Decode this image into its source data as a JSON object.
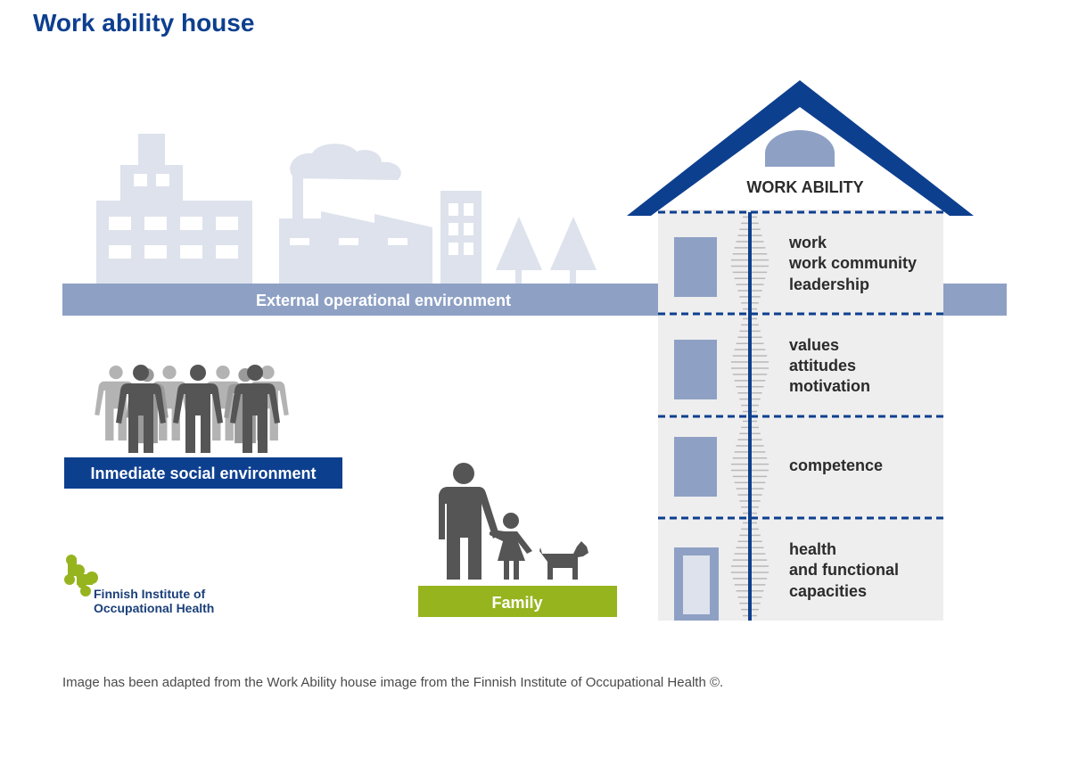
{
  "title": "Work ability house",
  "house": {
    "roof_label": "WORK ABILITY",
    "floors": [
      {
        "lines": [
          "work",
          "work community",
          "leadership"
        ]
      },
      {
        "lines": [
          "values",
          "attitudes",
          "motivation"
        ]
      },
      {
        "lines": [
          "competence"
        ]
      },
      {
        "lines": [
          "health",
          "and functional",
          "capacities"
        ]
      }
    ]
  },
  "environments": {
    "external": "External operational environment",
    "social": "Inmediate social environment",
    "family": "Family"
  },
  "logo": {
    "line1": "Finnish Institute of",
    "line2": "Occupational Health"
  },
  "caption": "Image has been adapted from the Work Ability house image from the Finnish Institute of Occupational Health ©.",
  "colors": {
    "navy": "#0d3f8f",
    "slate": "#8ea0c4",
    "pale": "#dde2ec",
    "green": "#96b41e",
    "person_dark": "#555555",
    "person_light": "#a8a8a8"
  }
}
